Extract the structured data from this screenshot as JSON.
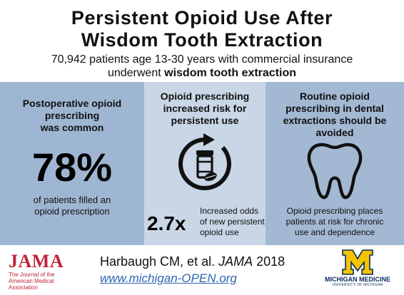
{
  "header": {
    "title_line1": "Persistent Opioid Use After",
    "title_line2": "Wisdom Tooth Extraction",
    "subtitle_line1": "70,942 patients age 13-30 years with commercial insurance",
    "subtitle_line2_prefix": "underwent ",
    "subtitle_line2_bold": "wisdom tooth extraction"
  },
  "panels": {
    "left": {
      "heading_lines": [
        "Postoperative opioid",
        "prescribing",
        "was common"
      ],
      "stat": "78%",
      "caption_lines": [
        "of patients filled an",
        "opioid prescription"
      ]
    },
    "middle": {
      "heading_lines": [
        "Opioid prescribing",
        "increased risk for",
        "persistent use"
      ],
      "icon": "pill-bottle-cycle-icon",
      "stat": "2.7x",
      "caption_lines": [
        "Increased odds",
        "of new persistent",
        "opioid use"
      ]
    },
    "right": {
      "heading_lines": [
        "Routine opioid",
        "prescribing in dental",
        "extractions should be",
        "avoided"
      ],
      "icon": "tooth-icon",
      "caption_lines": [
        "Opioid prescribing places",
        "patients at risk for chronic",
        "use and dependence"
      ]
    }
  },
  "footer": {
    "jama_logo": "JAMA",
    "jama_sub_lines": [
      "The Journal of the",
      "American Medical",
      "Association"
    ],
    "citation_prefix": "Harbaugh CM, et al. ",
    "citation_journal": "JAMA",
    "citation_year": " 2018",
    "url": "www.michigan-OPEN.org",
    "michigan_name": "MICHIGAN MEDICINE",
    "michigan_sub": "UNIVERSITY OF MICHIGAN"
  },
  "colors": {
    "panel_left": "#9fb6d2",
    "panel_middle": "#c8d6e6",
    "panel_right": "#a3b8d3",
    "jama_red": "#c0243a",
    "link_blue": "#2f65b0",
    "michigan_maize": "#f2c500",
    "michigan_blue": "#0a2a5e"
  }
}
